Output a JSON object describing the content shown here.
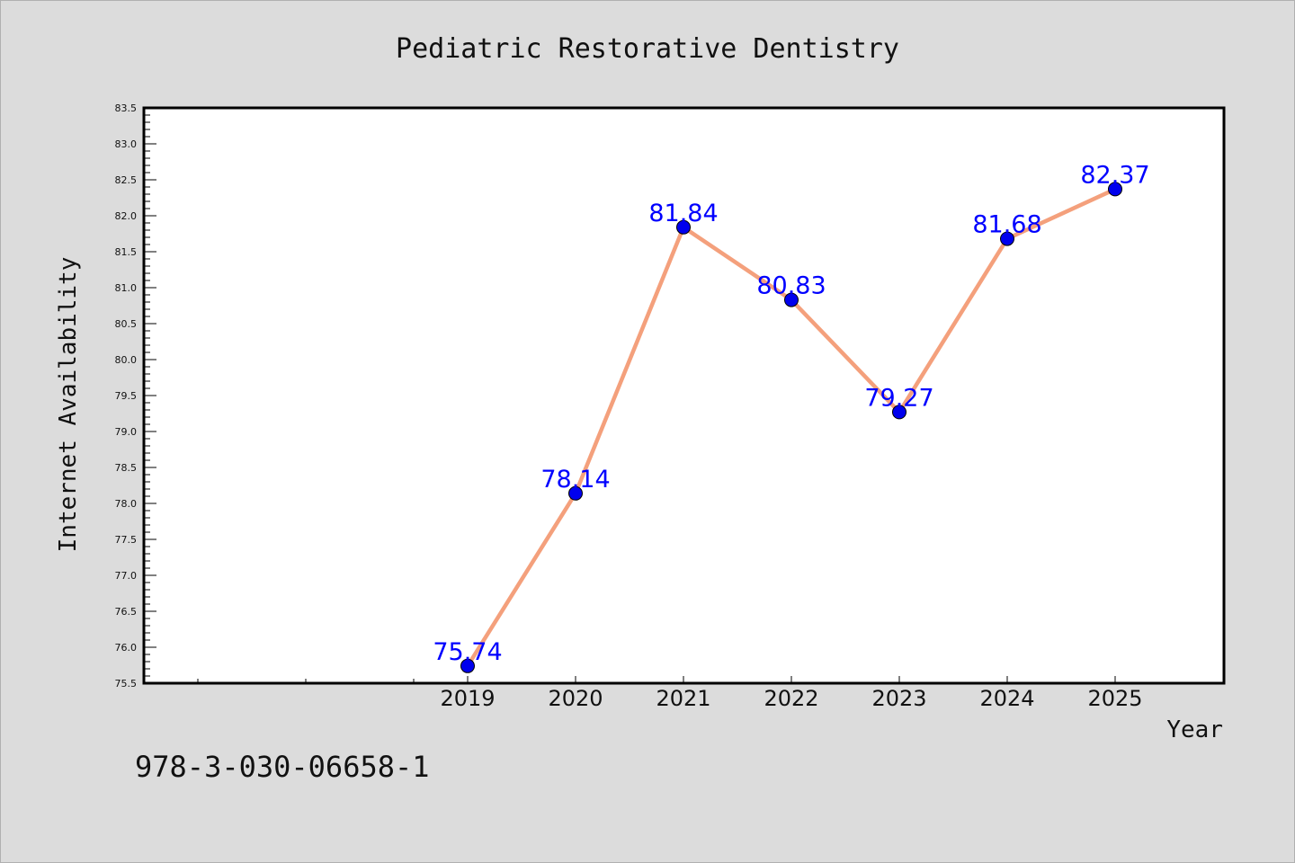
{
  "chart_data": {
    "type": "line",
    "title": "Pediatric Restorative Dentistry",
    "xlabel": "Year",
    "ylabel": "Internet Availability",
    "x": [
      "2019",
      "2020",
      "2021",
      "2022",
      "2023",
      "2024",
      "2025"
    ],
    "series": [
      {
        "values": [
          75.74,
          78.14,
          81.84,
          80.83,
          79.27,
          81.68,
          82.37
        ],
        "line_color": "#f4a07c",
        "marker_color": "#0000ee",
        "label_color": "#0000ff"
      }
    ],
    "ylim": [
      75.5,
      83.5
    ],
    "yticks": [
      "75.5",
      "76.0",
      "76.5",
      "77.0",
      "77.5",
      "78.0",
      "78.5",
      "79.0",
      "79.5",
      "80.0",
      "80.5",
      "81.0",
      "81.5",
      "82.0",
      "82.5",
      "83.0",
      "83.5"
    ],
    "data_labels": [
      "75.74",
      "78.14",
      "81.84",
      "80.83",
      "79.27",
      "81.68",
      "82.37"
    ],
    "grid": false,
    "background": "#dcdcdc",
    "plot_background": "#ffffff"
  },
  "annotation": "978-3-030-06658-1"
}
